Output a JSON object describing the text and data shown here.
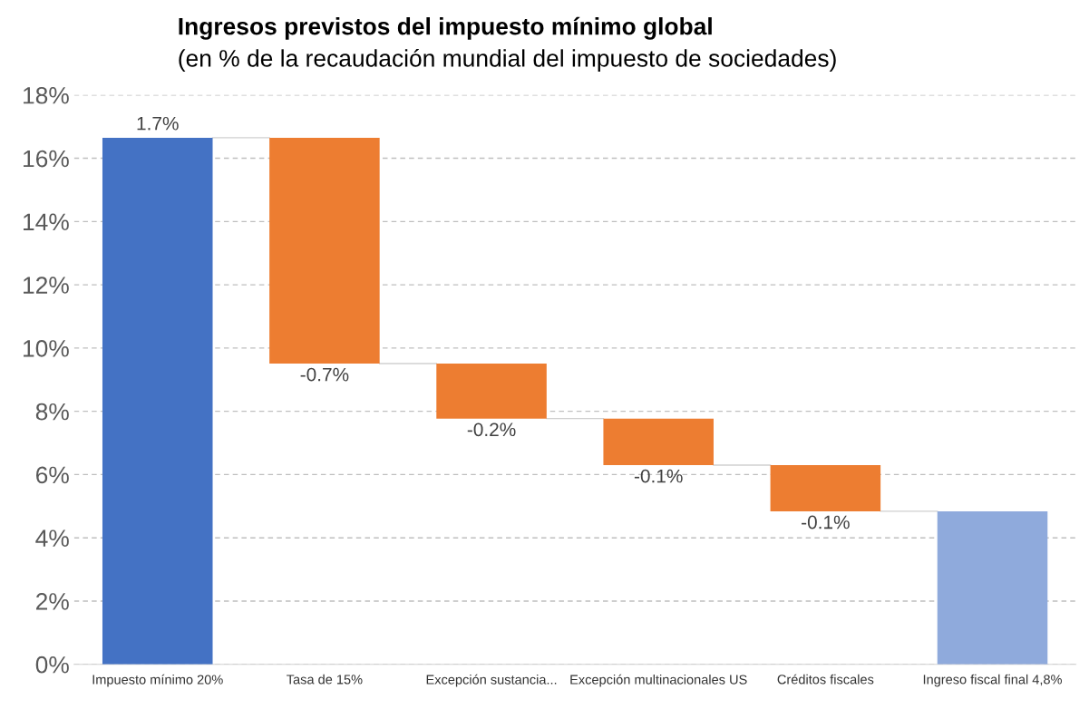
{
  "chart_data": {
    "type": "bar",
    "title": "Ingresos previstos del impuesto mínimo global",
    "subtitle": "(en % de la recaudación mundial del impuesto de sociedades)",
    "categories": [
      "Impuesto mínimo 20%",
      "Tasa de 15%",
      "Excepción sustancia...",
      "Excepción multinacionales US",
      "Créditos fiscales",
      "Ingreso fiscal final 4,8%"
    ],
    "values": [
      16.65,
      7.14,
      1.74,
      1.47,
      1.46,
      4.84
    ],
    "base": [
      0,
      9.51,
      7.77,
      6.3,
      4.84,
      0
    ],
    "colors": [
      "#4472c4",
      "#ed7d31",
      "#ed7d31",
      "#ed7d31",
      "#ed7d31",
      "#8faadc"
    ],
    "annotations": [
      {
        "text": "1.7%",
        "x": "Impuesto mínimo 20%",
        "y": 16.65
      },
      {
        "text": "-0.7%",
        "x": "Tasa de 15%",
        "y": 9.51
      },
      {
        "text": "-0.2%",
        "x": "Excepción sustancia...",
        "y": 7.77
      },
      {
        "text": "-0.1%",
        "x": "Excepción multinacionales US",
        "y": 6.3
      },
      {
        "text": "-0.1%",
        "x": "Créditos fiscales",
        "y": 4.84
      }
    ],
    "ylim": [
      0,
      18
    ],
    "yticks": [
      {
        "value": 0,
        "label": "0%"
      },
      {
        "value": 2,
        "label": "2%"
      },
      {
        "value": 4,
        "label": "4%"
      },
      {
        "value": 6,
        "label": "6%"
      },
      {
        "value": 8,
        "label": "8%"
      },
      {
        "value": 10,
        "label": "10%"
      },
      {
        "value": 12,
        "label": "12%"
      },
      {
        "value": 14,
        "label": "14%"
      },
      {
        "value": 16,
        "label": "16%"
      },
      {
        "value": 18,
        "label": "18%"
      }
    ],
    "grid": "y",
    "legend": false
  }
}
